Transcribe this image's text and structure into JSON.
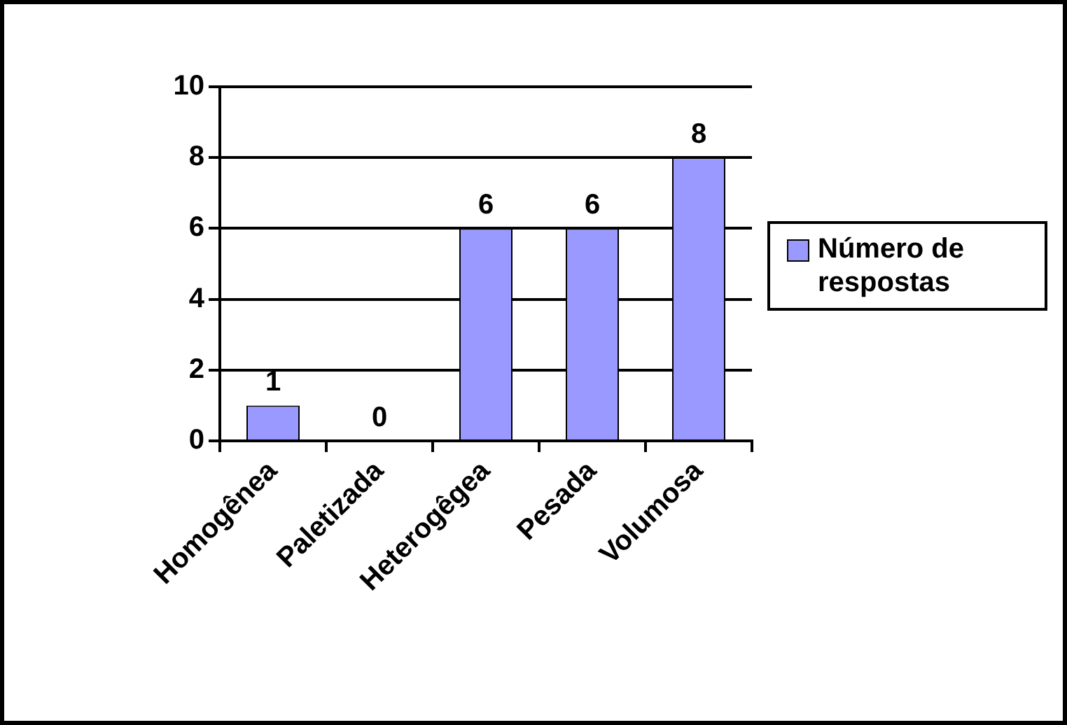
{
  "chart_data": {
    "type": "bar",
    "categories": [
      "Homogênea",
      "Paletizada",
      "Heterogêgea",
      "Pesada",
      "Volumosa"
    ],
    "series": [
      {
        "name": "Número de respostas",
        "color": "#9999ff",
        "values": [
          1,
          0,
          6,
          6,
          8
        ]
      }
    ],
    "ylim": [
      0,
      10
    ],
    "yticks": [
      0,
      2,
      4,
      6,
      8,
      10
    ],
    "grid": "y",
    "legend": "right",
    "data_labels": true
  }
}
